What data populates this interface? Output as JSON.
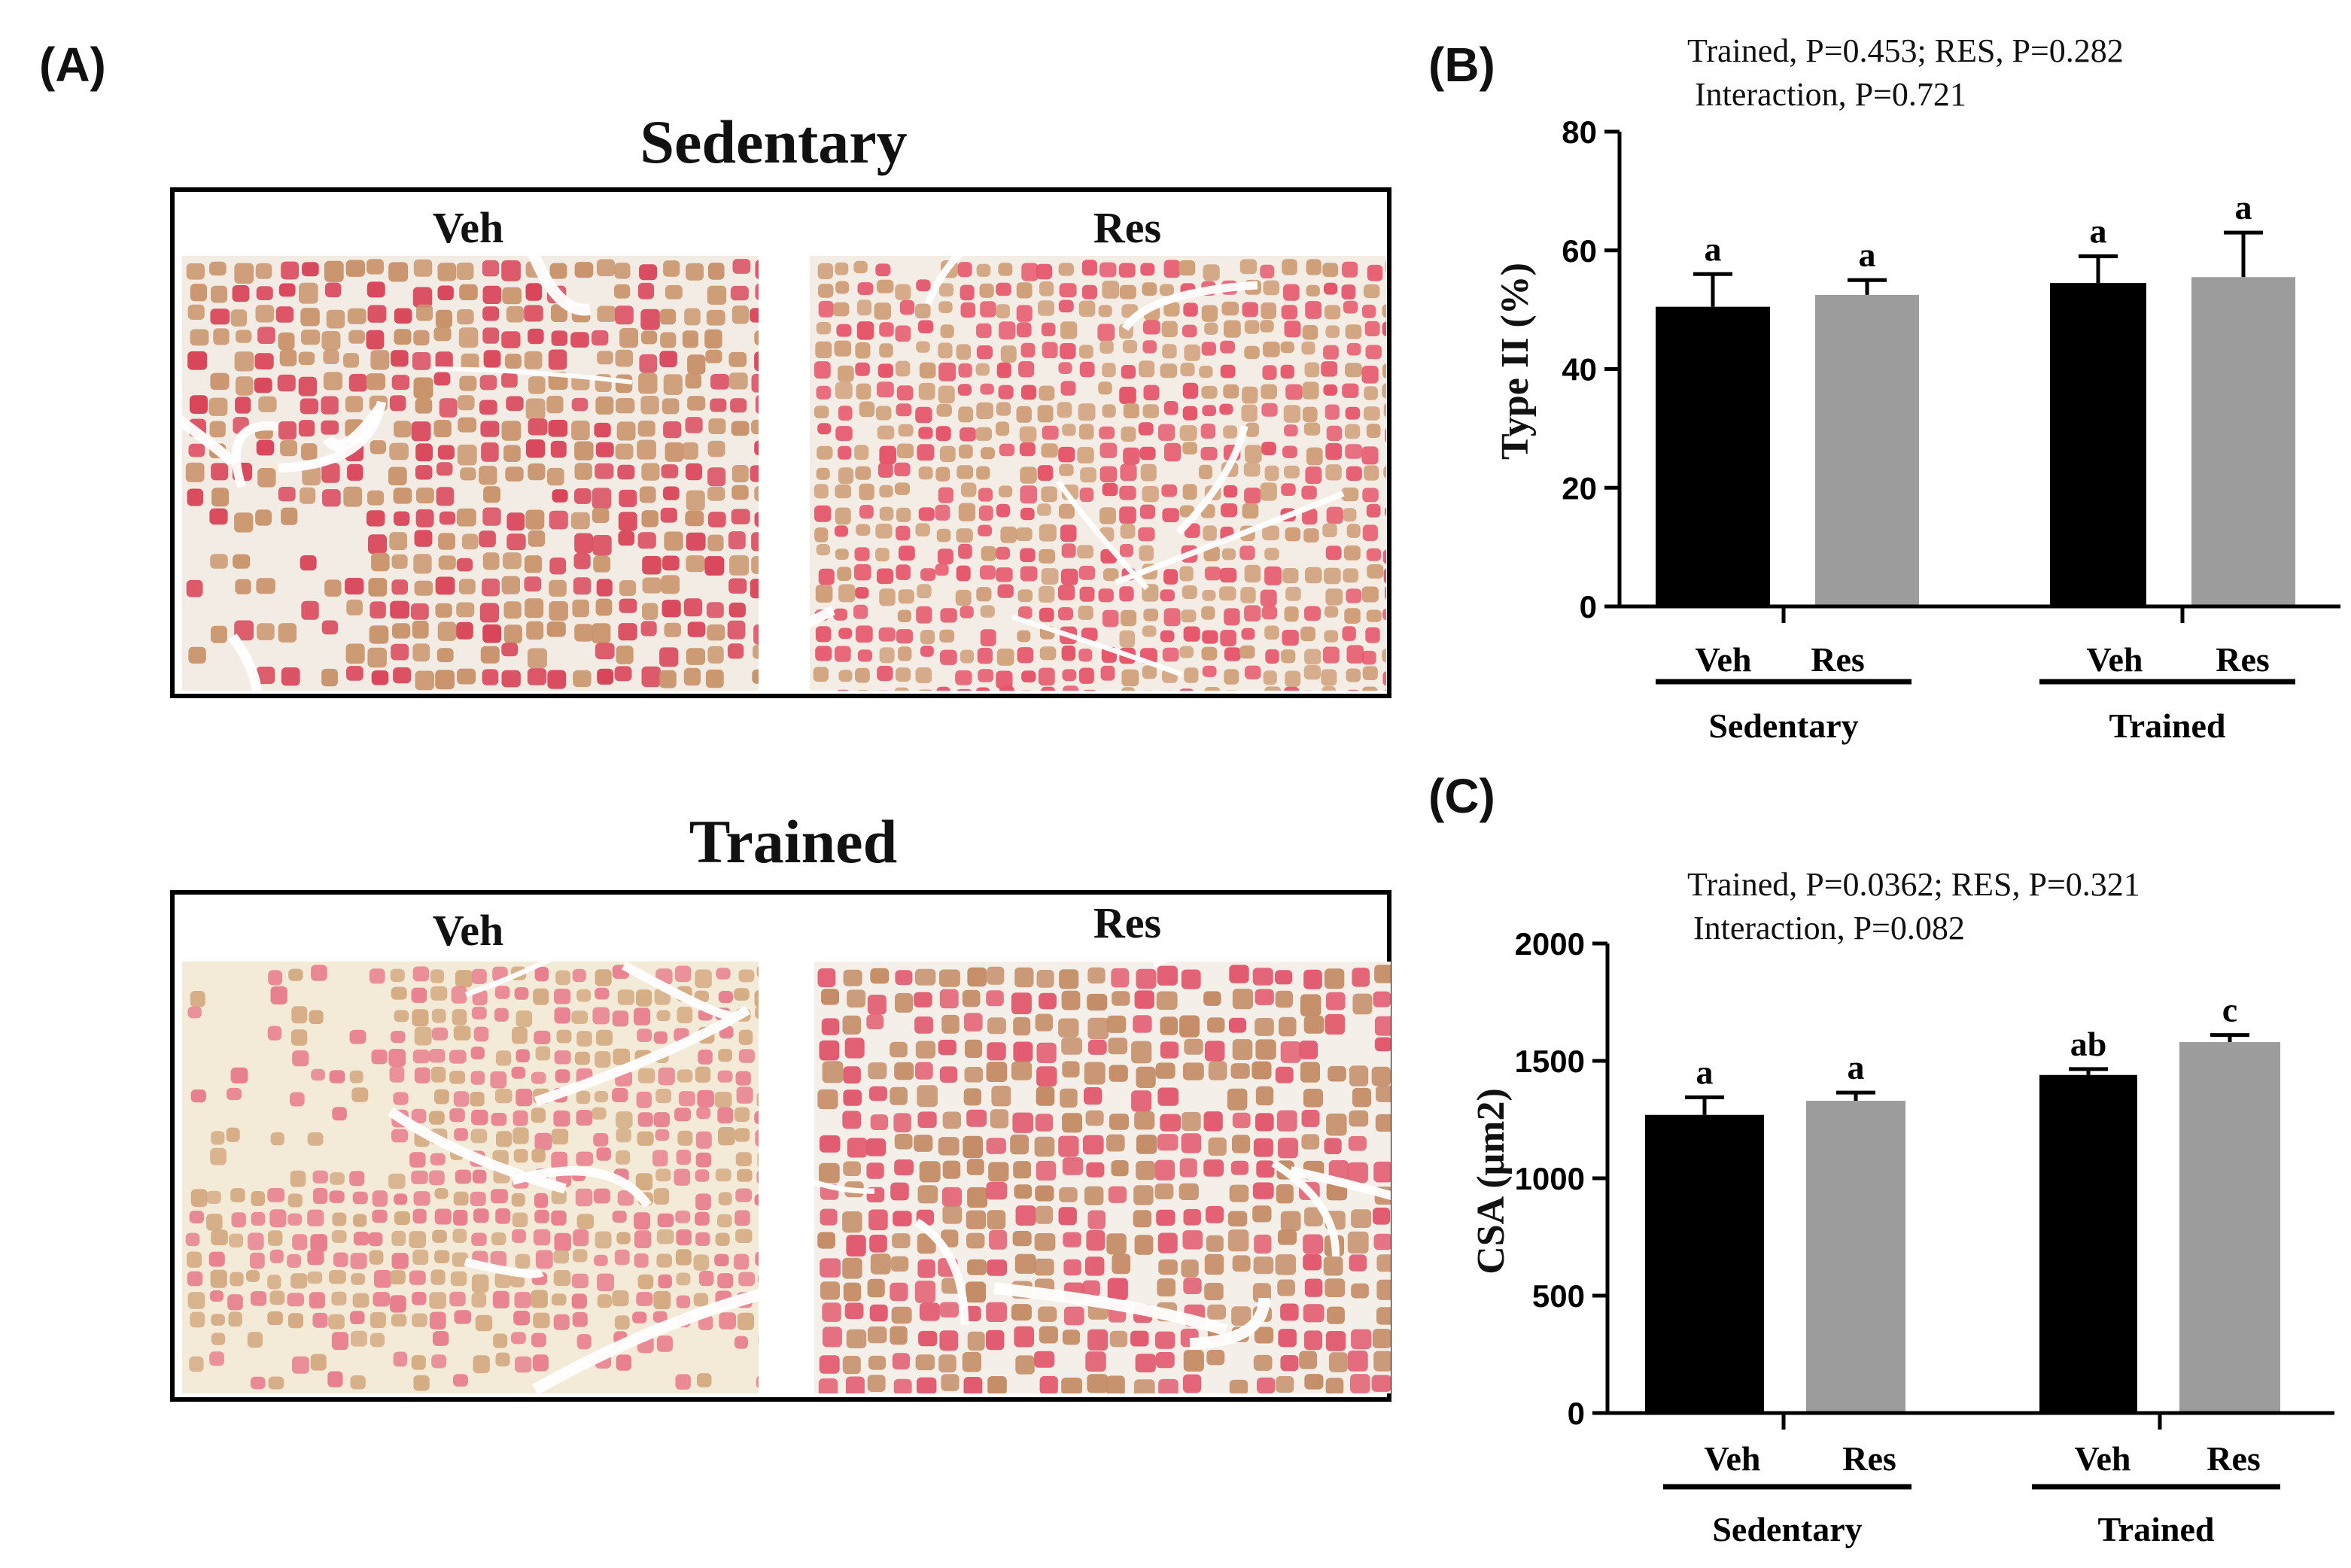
{
  "panel_labels": {
    "a": "(A)",
    "b": "(B)",
    "c": "(C)"
  },
  "histology": {
    "groups": [
      {
        "title": "Sedentary",
        "images": [
          {
            "label": "Veh",
            "base": "#f2ece4",
            "fiber_pink": "#d9465a",
            "fiber_tan": "#c9946c",
            "pattern": "sedentary-veh"
          },
          {
            "label": "Res",
            "base": "#f4ede6",
            "fiber_pink": "#e5566a",
            "fiber_tan": "#cf9f79",
            "pattern": "sedentary-res"
          }
        ]
      },
      {
        "title": "Trained",
        "images": [
          {
            "label": "Veh",
            "base": "#f3ead8",
            "fiber_pink": "#e87f8e",
            "fiber_tan": "#d4ab83",
            "pattern": "trained-veh"
          },
          {
            "label": "Res",
            "base": "#f5efe9",
            "fiber_pink": "#e15a6e",
            "fiber_tan": "#c48d67",
            "pattern": "trained-res"
          }
        ]
      }
    ]
  },
  "chart_data": [
    {
      "type": "bar",
      "panel": "(B)",
      "stats_line1": "Trained, P=0.453; RES, P=0.282",
      "stats_line2": "Interaction, P=0.721",
      "ylabel": "Type II (%)",
      "ylim": [
        0,
        80
      ],
      "yticks": [
        0,
        20,
        40,
        60,
        80
      ],
      "groups": [
        {
          "name": "Sedentary",
          "bars": [
            {
              "label": "Veh",
              "value": 50.5,
              "error": 5.5,
              "letter": "a",
              "color": "#000000"
            },
            {
              "label": "Res",
              "value": 52.5,
              "error": 2.5,
              "letter": "a",
              "color": "#9c9c9c"
            }
          ]
        },
        {
          "name": "Trained",
          "bars": [
            {
              "label": "Veh",
              "value": 54.5,
              "error": 4.5,
              "letter": "a",
              "color": "#000000"
            },
            {
              "label": "Res",
              "value": 55.5,
              "error": 7.5,
              "letter": "a",
              "color": "#9c9c9c"
            }
          ]
        }
      ]
    },
    {
      "type": "bar",
      "panel": "(C)",
      "stats_line1": "Trained, P=0.0362; RES, P=0.321",
      "stats_line2": "Interaction, P=0.082",
      "ylabel": "CSA (μm2)",
      "ylim": [
        0,
        2000
      ],
      "yticks": [
        0,
        500,
        1000,
        1500,
        2000
      ],
      "groups": [
        {
          "name": "Sedentary",
          "bars": [
            {
              "label": "Veh",
              "value": 1270,
              "error": 75,
              "letter": "a",
              "color": "#000000"
            },
            {
              "label": "Res",
              "value": 1330,
              "error": 35,
              "letter": "a",
              "color": "#9c9c9c"
            }
          ]
        },
        {
          "name": "Trained",
          "bars": [
            {
              "label": "Veh",
              "value": 1440,
              "error": 25,
              "letter": "ab",
              "color": "#000000"
            },
            {
              "label": "Res",
              "value": 1580,
              "error": 30,
              "letter": "c",
              "color": "#9c9c9c"
            }
          ]
        }
      ]
    }
  ]
}
